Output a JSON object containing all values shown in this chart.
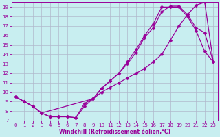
{
  "xlabel": "Windchill (Refroidissement éolien,°C)",
  "background_color": "#c8eef0",
  "line_color": "#990099",
  "grid_color": "#b0b8cc",
  "xlim": [
    -0.5,
    23.5
  ],
  "ylim": [
    7,
    19.5
  ],
  "xticks": [
    0,
    1,
    2,
    3,
    4,
    5,
    6,
    7,
    8,
    9,
    10,
    11,
    12,
    13,
    14,
    15,
    16,
    17,
    18,
    19,
    20,
    21,
    22,
    23
  ],
  "yticks": [
    7,
    8,
    9,
    10,
    11,
    12,
    13,
    14,
    15,
    16,
    17,
    18,
    19
  ],
  "curve1_x": [
    0,
    1,
    2,
    3,
    4,
    5,
    6,
    7,
    8,
    9,
    10,
    11,
    12,
    13,
    14,
    15,
    16,
    17,
    18,
    19,
    20,
    21,
    22,
    23
  ],
  "curve1_y": [
    9.5,
    9.0,
    8.5,
    7.8,
    7.4,
    7.4,
    7.4,
    7.3,
    8.8,
    9.3,
    10.4,
    11.2,
    12.0,
    13.2,
    14.5,
    16.0,
    17.2,
    19.0,
    19.0,
    19.0,
    18.0,
    16.5,
    14.3,
    13.2
  ],
  "curve2_x": [
    0,
    1,
    2,
    3,
    4,
    5,
    6,
    7,
    8,
    9,
    10,
    11,
    12,
    13,
    14,
    15,
    16,
    17,
    18,
    19,
    20,
    21,
    22,
    23
  ],
  "curve2_y": [
    9.5,
    9.0,
    8.5,
    7.8,
    7.4,
    7.4,
    7.4,
    7.3,
    8.5,
    9.3,
    10.4,
    11.2,
    12.0,
    13.0,
    14.2,
    15.8,
    16.8,
    18.5,
    19.1,
    19.1,
    18.2,
    16.8,
    16.3,
    13.2
  ],
  "curve3_x": [
    0,
    1,
    2,
    3,
    9,
    10,
    11,
    12,
    13,
    14,
    15,
    16,
    17,
    18,
    19,
    20,
    21,
    22,
    23
  ],
  "curve3_y": [
    9.5,
    9.0,
    8.5,
    7.8,
    9.3,
    10.0,
    10.5,
    11.0,
    11.5,
    12.0,
    12.5,
    13.2,
    14.0,
    15.5,
    17.0,
    18.2,
    19.2,
    19.5,
    13.2
  ],
  "marker_size": 2.5,
  "line_width": 0.9,
  "tick_fontsize": 5,
  "xlabel_fontsize": 5.5
}
